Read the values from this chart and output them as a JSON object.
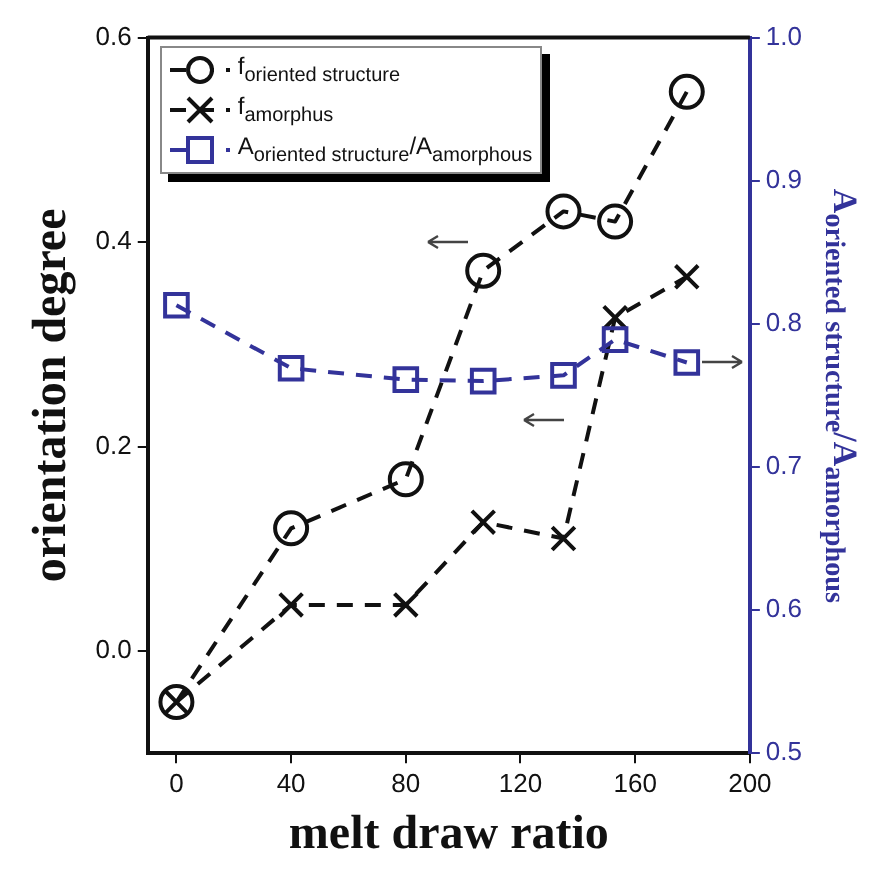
{
  "chart_data": {
    "type": "line",
    "xlabel": "melt draw ratio",
    "ylabel": "orientation degree",
    "y2label": "A$_{oriented structure}$/A$_{amorphous}$",
    "xlim": [
      -10,
      200
    ],
    "xticks": [
      0,
      40,
      80,
      120,
      160,
      200
    ],
    "ylim": [
      -0.1,
      0.6
    ],
    "yticks": [
      {
        "value": 0.0,
        "label": "0.0"
      },
      0.2,
      0.4,
      0.6
    ],
    "y2lim": [
      0.5,
      1.0
    ],
    "y2ticks": [
      0.5,
      0.6,
      0.7,
      0.8,
      0.9,
      {
        "value": 1.0,
        "label": "1.0"
      }
    ],
    "legend": "top left",
    "line_style": "dashed",
    "series": [
      {
        "name": "f$_{oriented structure}$",
        "color": "#111111",
        "marker": "circle",
        "x": [
          0,
          40,
          80,
          107,
          135,
          153,
          178
        ],
        "values": [
          -0.05,
          0.12,
          0.168,
          0.372,
          0.43,
          0.42,
          0.547
        ]
      },
      {
        "name": "f$_{amorphus}$",
        "color": "#111111",
        "marker": "cross",
        "x": [
          0,
          40,
          80,
          107,
          135,
          153,
          178
        ],
        "values": [
          -0.05,
          0.045,
          0.045,
          0.126,
          0.11,
          0.326,
          0.366
        ]
      },
      {
        "name": "A$_{oriented structure}$/A$_{amorphous}$",
        "color": "#33339a",
        "marker": "square",
        "axis": "y2",
        "x": [
          0,
          40,
          80,
          107,
          135,
          153,
          178
        ],
        "values": [
          0.813,
          0.769,
          0.761,
          0.76,
          0.764,
          0.789,
          0.773
        ]
      }
    ]
  }
}
